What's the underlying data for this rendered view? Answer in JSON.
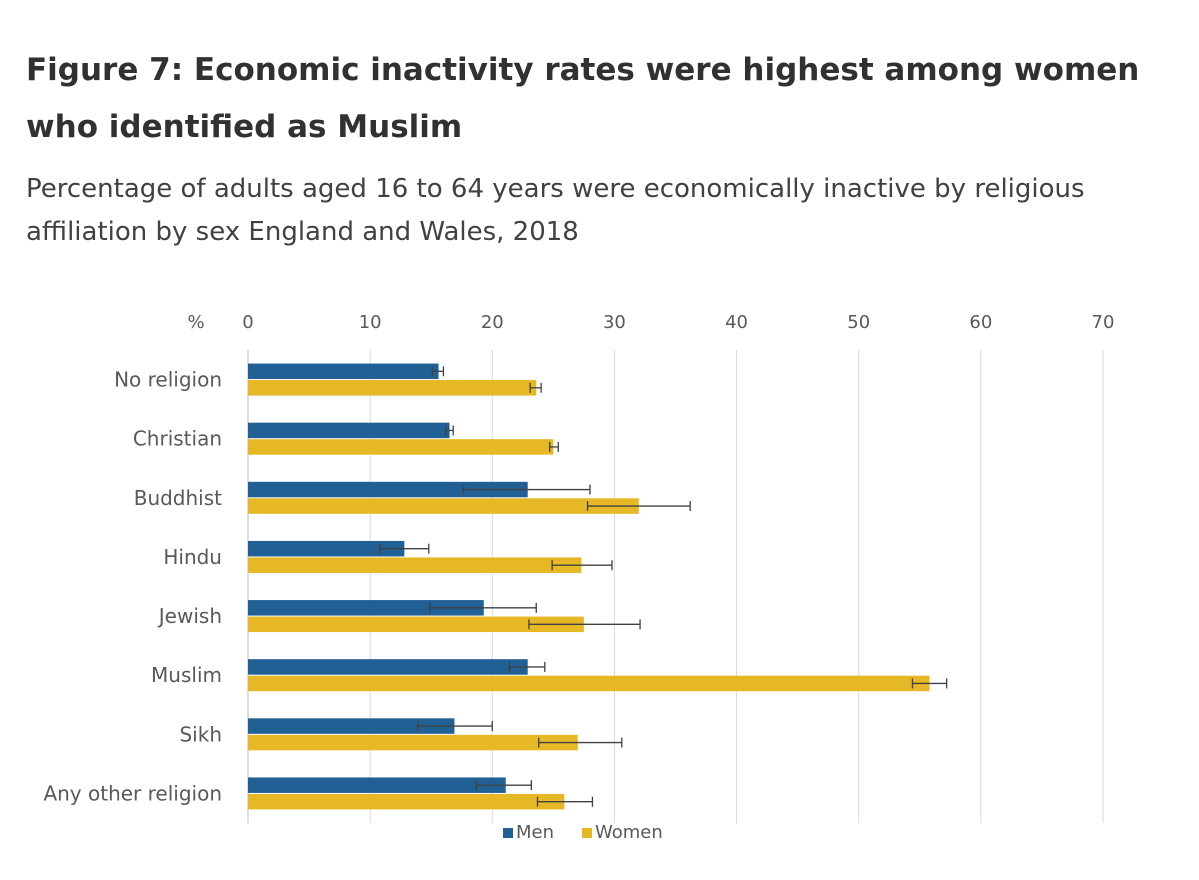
{
  "title": "Figure 7: Economic inactivity rates were highest among women who identified as Muslim",
  "subtitle": "Percentage of adults aged 16 to 64 years were economically inactive by religious affiliation by sex England and Wales, 2018",
  "colors": {
    "men": "#206095",
    "women": "#e6b826",
    "grid": "#d9d9d9",
    "text": "#595959",
    "error": "#404040"
  },
  "chart_data": {
    "type": "bar",
    "orientation": "horizontal",
    "title": "Figure 7: Economic inactivity rates were highest among women who identified as Muslim",
    "subtitle": "Percentage of adults aged 16 to 64 years were economically inactive by religious affiliation by sex England and Wales, 2018",
    "unit_label": "%",
    "xlim": [
      0,
      70
    ],
    "ticks": [
      0,
      10,
      20,
      30,
      40,
      50,
      60,
      70
    ],
    "grid": true,
    "legend_position": "bottom",
    "categories": [
      "No religion",
      "Christian",
      "Buddhist",
      "Hindu",
      "Jewish",
      "Muslim",
      "Sikh",
      "Any other religion"
    ],
    "series": [
      {
        "name": "Men",
        "values": [
          15.6,
          16.5,
          22.9,
          12.8,
          19.3,
          22.9,
          16.9,
          21.1
        ],
        "ci_low": [
          15.1,
          16.2,
          17.6,
          10.8,
          14.9,
          21.4,
          13.9,
          18.7
        ],
        "ci_high": [
          16.0,
          16.8,
          28.0,
          14.8,
          23.6,
          24.3,
          20.0,
          23.2
        ]
      },
      {
        "name": "Women",
        "values": [
          23.6,
          25.0,
          32.0,
          27.3,
          27.5,
          55.8,
          27.0,
          25.9
        ],
        "ci_low": [
          23.1,
          24.7,
          27.8,
          24.9,
          23.0,
          54.4,
          23.8,
          23.7
        ],
        "ci_high": [
          24.0,
          25.4,
          36.2,
          29.8,
          32.1,
          57.2,
          30.6,
          28.2
        ]
      }
    ]
  }
}
